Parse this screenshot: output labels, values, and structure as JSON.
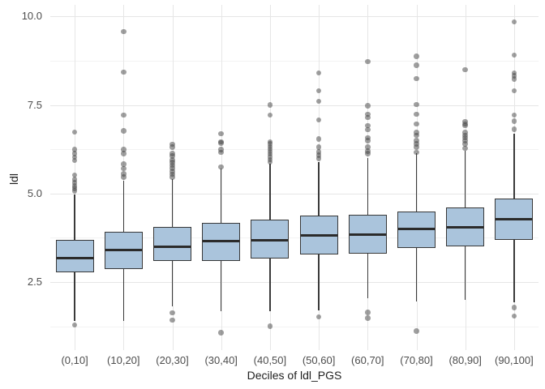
{
  "chart_data": {
    "type": "boxplot",
    "title": "",
    "xlabel": "Deciles of ldl_PGS",
    "ylabel": "ldl",
    "ylim": [
      0.58,
      10.33
    ],
    "y_major_ticks": [
      2.5,
      5.0,
      7.5,
      10.0
    ],
    "y_tick_labels": [
      "2.5",
      "5.0",
      "7.5",
      "10.0"
    ],
    "y_minor_ticks": [
      1.25,
      3.75,
      6.25,
      8.75
    ],
    "grid": "major and minor horizontal, vertical per category, no axis lines (ggplot minimal theme)",
    "legend": "none",
    "categories": [
      "(0,10]",
      "(10,20]",
      "(20,30]",
      "(30,40]",
      "(40,50]",
      "(50,60]",
      "(60,70]",
      "(70,80]",
      "(80,90]",
      "(90,100]"
    ],
    "boxes": [
      {
        "label": "(0,10]",
        "whisker_low": 1.41,
        "q1": 2.78,
        "median": 3.18,
        "q3": 3.7,
        "whisker_high": 4.98,
        "outliers": [
          6.74,
          6.24,
          6.13,
          6.03,
          5.94,
          5.52,
          5.4,
          5.31,
          5.22,
          5.15,
          5.08,
          1.29
        ]
      },
      {
        "label": "(10,20]",
        "whisker_low": 1.41,
        "q1": 2.88,
        "median": 3.4,
        "q3": 3.93,
        "whisker_high": 5.37,
        "outliers": [
          9.58,
          8.43,
          7.22,
          6.77,
          6.24,
          6.13,
          5.83,
          5.71,
          5.56,
          5.47
        ]
      },
      {
        "label": "(20,30]",
        "whisker_low": 1.82,
        "q1": 3.1,
        "median": 3.5,
        "q3": 4.05,
        "whisker_high": 5.42,
        "outliers": [
          6.39,
          6.31,
          6.13,
          6.06,
          5.95,
          5.88,
          5.8,
          5.72,
          5.63,
          5.55,
          5.47,
          1.63,
          1.43
        ]
      },
      {
        "label": "(30,40]",
        "whisker_low": 1.67,
        "q1": 3.09,
        "median": 3.65,
        "q3": 4.17,
        "whisker_high": 5.71,
        "outliers": [
          6.69,
          6.46,
          6.43,
          6.24,
          6.16,
          5.75,
          1.07
        ]
      },
      {
        "label": "(40,50]",
        "whisker_low": 1.67,
        "q1": 3.16,
        "median": 3.68,
        "q3": 4.27,
        "whisker_high": 5.84,
        "outliers": [
          7.5,
          7.22,
          6.46,
          6.4,
          6.33,
          6.26,
          6.19,
          6.12,
          6.04,
          5.96,
          5.89,
          1.25
        ]
      },
      {
        "label": "(50,60]",
        "whisker_low": 1.71,
        "q1": 3.28,
        "median": 3.82,
        "q3": 4.37,
        "whisker_high": 5.9,
        "outliers": [
          8.41,
          7.9,
          7.61,
          7.08,
          6.54,
          6.31,
          6.18,
          6.08,
          5.99,
          1.52
        ]
      },
      {
        "label": "(60,70]",
        "whisker_low": 2.05,
        "q1": 3.31,
        "median": 3.84,
        "q3": 4.41,
        "whisker_high": 6.01,
        "outliers": [
          8.73,
          7.48,
          7.24,
          7.15,
          6.92,
          6.8,
          6.58,
          6.5,
          6.31,
          6.2,
          6.13,
          1.64,
          1.48
        ]
      },
      {
        "label": "(70,80]",
        "whisker_low": 1.95,
        "q1": 3.47,
        "median": 4.0,
        "q3": 4.5,
        "whisker_high": 6.14,
        "outliers": [
          8.88,
          8.62,
          8.25,
          7.51,
          7.24,
          6.96,
          6.73,
          6.65,
          6.5,
          6.4,
          6.31,
          6.16,
          1.12
        ]
      },
      {
        "label": "(80,90]",
        "whisker_low": 2.01,
        "q1": 3.52,
        "median": 4.05,
        "q3": 4.61,
        "whisker_high": 6.2,
        "outliers": [
          8.5,
          7.03,
          6.97,
          6.92,
          6.73,
          6.65,
          6.58,
          6.5,
          6.4,
          6.28
        ]
      },
      {
        "label": "(90,100]",
        "whisker_low": 1.93,
        "q1": 3.69,
        "median": 4.28,
        "q3": 4.87,
        "whisker_high": 6.7,
        "outliers": [
          9.85,
          8.91,
          8.41,
          8.33,
          8.24,
          7.9,
          7.22,
          7.05,
          6.82,
          1.78,
          1.54
        ]
      }
    ],
    "style": {
      "box_fill": "#aac4dc",
      "box_border": "#383838",
      "median_color": "#2b2b2b",
      "whisker_color": "#3a3a3a",
      "outlier_color": "rgba(64,64,64,0.5)",
      "major_grid_color": "#e6e6e6",
      "minor_grid_color": "#f3f3f3",
      "tick_text_color": "#4d4d4d",
      "axis_title_color": "#1f1f1f",
      "background": "#ffffff"
    }
  }
}
